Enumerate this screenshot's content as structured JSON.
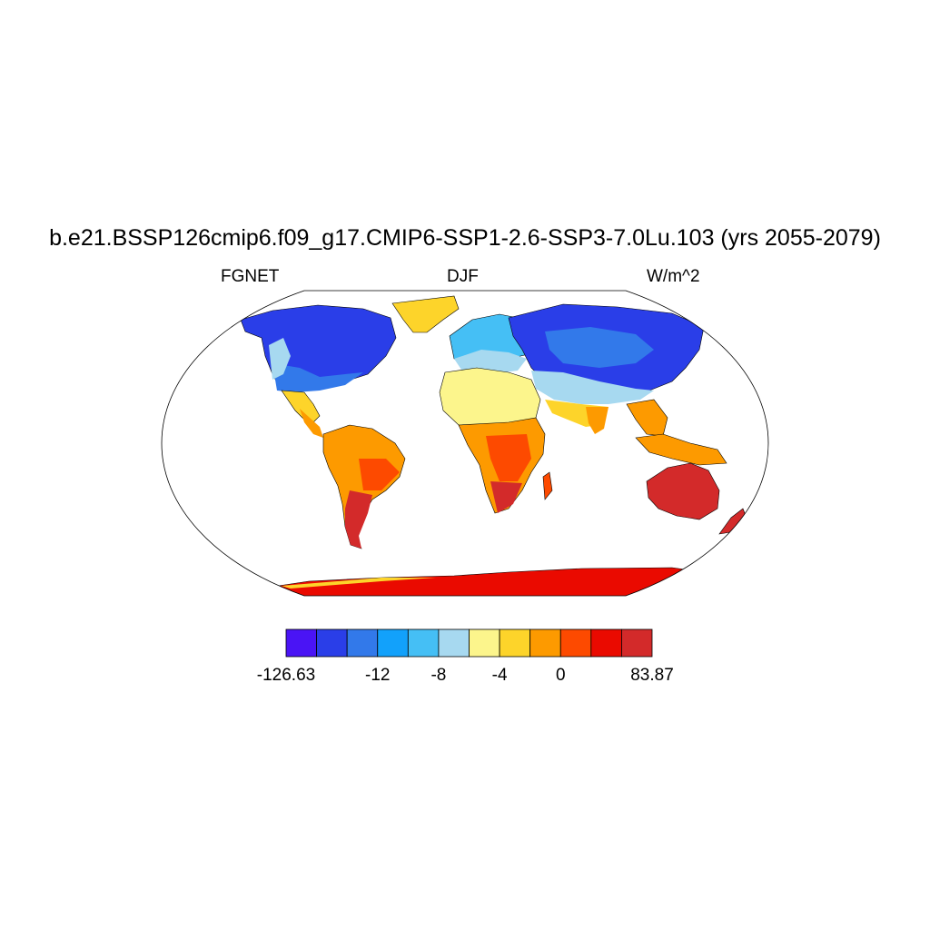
{
  "title": "b.e21.BSSP126cmip6.f09_g17.CMIP6-SSP1-2.6-SSP3-7.0Lu.103 (yrs 2055-2079)",
  "variable": "FGNET",
  "season": "DJF",
  "units": "W/m^2",
  "colorbar": {
    "colors": [
      "#4a14f5",
      "#2a3ee8",
      "#3279ea",
      "#12a1fb",
      "#45bff5",
      "#a7d9f0",
      "#fcf58c",
      "#fdd42a",
      "#fd9a00",
      "#fd4a00",
      "#ea0a00",
      "#d32a2a"
    ],
    "labels": [
      "-126.63",
      "-12",
      "-8",
      "-4",
      "0",
      "83.87"
    ]
  },
  "legend_colors": {
    "ocean": "#ffffff",
    "coastline": "#000000"
  }
}
